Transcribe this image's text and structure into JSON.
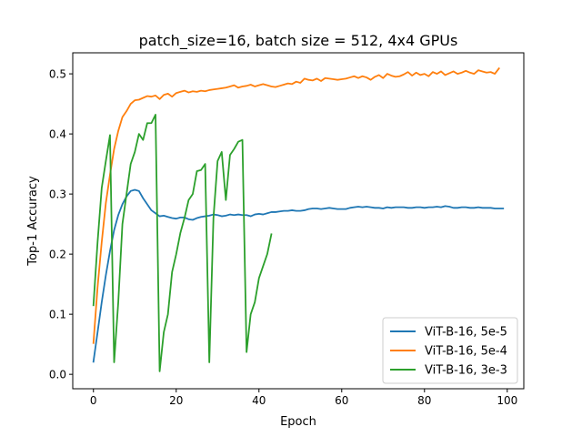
{
  "chart_data": {
    "type": "line",
    "title": "patch_size=16, batch size = 512, 4x4 GPUs",
    "xlabel": "Epoch",
    "ylabel": "Top-1 Accuracy",
    "xlim": [
      -5,
      104
    ],
    "ylim": [
      -0.024,
      0.535
    ],
    "xticks": [
      0,
      20,
      40,
      60,
      80,
      100
    ],
    "yticks": [
      0.0,
      0.1,
      0.2,
      0.3,
      0.4,
      0.5
    ],
    "xtick_labels": [
      "0",
      "20",
      "40",
      "60",
      "80",
      "100"
    ],
    "ytick_labels": [
      "0.0",
      "0.1",
      "0.2",
      "0.3",
      "0.4",
      "0.5"
    ],
    "grid": false,
    "legend_position": "lower-right",
    "series": [
      {
        "name": "ViT-B-16, 5e-5",
        "color": "#1f77b4",
        "x": [
          0,
          1,
          2,
          3,
          4,
          5,
          6,
          7,
          8,
          9,
          10,
          11,
          12,
          13,
          14,
          15,
          16,
          17,
          18,
          19,
          20,
          21,
          22,
          23,
          24,
          25,
          26,
          27,
          28,
          29,
          30,
          31,
          32,
          33,
          34,
          35,
          36,
          37,
          38,
          39,
          40,
          41,
          42,
          43,
          44,
          45,
          46,
          47,
          48,
          49,
          50,
          51,
          52,
          53,
          54,
          55,
          56,
          57,
          58,
          59,
          60,
          61,
          62,
          63,
          64,
          65,
          66,
          67,
          68,
          69,
          70,
          71,
          72,
          73,
          74,
          75,
          76,
          77,
          78,
          79,
          80,
          81,
          82,
          83,
          84,
          85,
          86,
          87,
          88,
          89,
          90,
          91,
          92,
          93,
          94,
          95,
          96,
          97,
          98,
          99
        ],
        "y": [
          0.021,
          0.07,
          0.12,
          0.165,
          0.205,
          0.24,
          0.265,
          0.283,
          0.296,
          0.305,
          0.307,
          0.305,
          0.293,
          0.283,
          0.273,
          0.268,
          0.263,
          0.264,
          0.262,
          0.26,
          0.259,
          0.261,
          0.261,
          0.258,
          0.257,
          0.26,
          0.262,
          0.263,
          0.264,
          0.266,
          0.265,
          0.263,
          0.264,
          0.266,
          0.265,
          0.266,
          0.265,
          0.265,
          0.263,
          0.266,
          0.267,
          0.266,
          0.268,
          0.27,
          0.27,
          0.271,
          0.272,
          0.272,
          0.273,
          0.272,
          0.272,
          0.273,
          0.275,
          0.276,
          0.276,
          0.275,
          0.276,
          0.277,
          0.276,
          0.275,
          0.275,
          0.275,
          0.277,
          0.278,
          0.279,
          0.278,
          0.279,
          0.278,
          0.277,
          0.277,
          0.276,
          0.278,
          0.277,
          0.278,
          0.278,
          0.278,
          0.277,
          0.277,
          0.278,
          0.278,
          0.277,
          0.278,
          0.278,
          0.279,
          0.278,
          0.28,
          0.279,
          0.277,
          0.277,
          0.278,
          0.278,
          0.277,
          0.277,
          0.278,
          0.277,
          0.277,
          0.277,
          0.276,
          0.276,
          0.276
        ]
      },
      {
        "name": "ViT-B-16, 5e-4",
        "color": "#ff7f0e",
        "x": [
          0,
          1,
          2,
          3,
          4,
          5,
          6,
          7,
          8,
          9,
          10,
          11,
          12,
          13,
          14,
          15,
          16,
          17,
          18,
          19,
          20,
          21,
          22,
          23,
          24,
          25,
          26,
          27,
          28,
          29,
          30,
          31,
          32,
          33,
          34,
          35,
          36,
          37,
          38,
          39,
          40,
          41,
          42,
          43,
          44,
          45,
          46,
          47,
          48,
          49,
          50,
          51,
          52,
          53,
          54,
          55,
          56,
          57,
          58,
          59,
          60,
          61,
          62,
          63,
          64,
          65,
          66,
          67,
          68,
          69,
          70,
          71,
          72,
          73,
          74,
          75,
          76,
          77,
          78,
          79,
          80,
          81,
          82,
          83,
          84,
          85,
          86,
          87,
          88,
          89,
          90,
          91,
          92,
          93,
          94,
          95,
          96,
          97,
          98
        ],
        "y": [
          0.052,
          0.145,
          0.22,
          0.285,
          0.332,
          0.375,
          0.405,
          0.428,
          0.438,
          0.45,
          0.456,
          0.457,
          0.46,
          0.463,
          0.462,
          0.464,
          0.458,
          0.465,
          0.467,
          0.462,
          0.468,
          0.47,
          0.472,
          0.469,
          0.471,
          0.47,
          0.472,
          0.471,
          0.473,
          0.474,
          0.475,
          0.476,
          0.477,
          0.479,
          0.481,
          0.477,
          0.479,
          0.48,
          0.482,
          0.479,
          0.481,
          0.483,
          0.481,
          0.479,
          0.478,
          0.48,
          0.482,
          0.484,
          0.483,
          0.487,
          0.485,
          0.492,
          0.49,
          0.489,
          0.492,
          0.488,
          0.493,
          0.492,
          0.491,
          0.49,
          0.491,
          0.492,
          0.494,
          0.496,
          0.493,
          0.496,
          0.494,
          0.49,
          0.495,
          0.498,
          0.493,
          0.5,
          0.497,
          0.495,
          0.496,
          0.499,
          0.503,
          0.497,
          0.502,
          0.498,
          0.5,
          0.496,
          0.503,
          0.5,
          0.504,
          0.498,
          0.501,
          0.504,
          0.5,
          0.502,
          0.505,
          0.502,
          0.5,
          0.506,
          0.504,
          0.502,
          0.503,
          0.5,
          0.509
        ]
      },
      {
        "name": "ViT-B-16, 3e-3",
        "color": "#2ca02c",
        "x": [
          0,
          1,
          2,
          3,
          4,
          5,
          6,
          7,
          8,
          9,
          10,
          11,
          12,
          13,
          14,
          15,
          16,
          17,
          18,
          19,
          20,
          21,
          22,
          23,
          24,
          25,
          26,
          27,
          28,
          29,
          30,
          31,
          32,
          33,
          34,
          35,
          36,
          37,
          38,
          39,
          40,
          41,
          42,
          43
        ],
        "y": [
          0.115,
          0.22,
          0.31,
          0.355,
          0.398,
          0.02,
          0.12,
          0.25,
          0.3,
          0.35,
          0.37,
          0.4,
          0.39,
          0.418,
          0.418,
          0.432,
          0.005,
          0.07,
          0.1,
          0.17,
          0.2,
          0.235,
          0.26,
          0.29,
          0.3,
          0.338,
          0.34,
          0.35,
          0.02,
          0.26,
          0.355,
          0.37,
          0.29,
          0.365,
          0.375,
          0.387,
          0.39,
          0.037,
          0.1,
          0.12,
          0.16,
          0.18,
          0.2,
          0.233
        ]
      }
    ]
  }
}
